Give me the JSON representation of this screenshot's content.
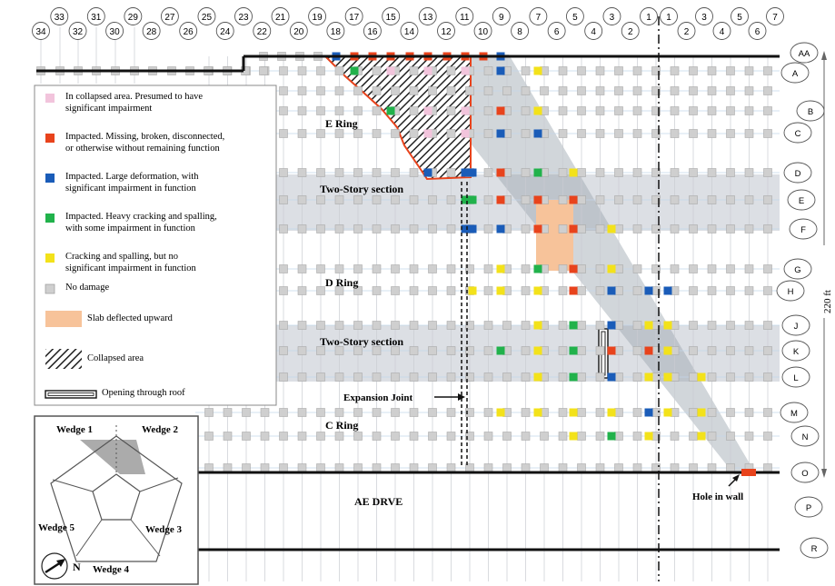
{
  "column_labels_left": [
    "34",
    "33",
    "32",
    "31",
    "30",
    "29",
    "28",
    "27",
    "26",
    "25",
    "24",
    "23",
    "22",
    "21",
    "20",
    "19",
    "18",
    "17",
    "16",
    "15",
    "14",
    "13",
    "12",
    "11",
    "10",
    "9",
    "8",
    "7",
    "6",
    "5",
    "4",
    "3",
    "2",
    "1"
  ],
  "column_labels_right": [
    "1",
    "2",
    "3",
    "4",
    "5",
    "6",
    "7"
  ],
  "row_labels": [
    "AA",
    "A",
    "B",
    "C",
    "D",
    "E",
    "F",
    "G",
    "H",
    "J",
    "K",
    "L",
    "M",
    "N",
    "O",
    "P",
    "R"
  ],
  "region_labels": {
    "e_ring": "E Ring",
    "two_story_1": "Two-Story section",
    "d_ring": "D Ring",
    "two_story_2": "Two-Story section",
    "c_ring": "C Ring",
    "drive": "AE DRVE",
    "expansion_joint": "Expansion Joint",
    "hole_in_wall": "Hole in wall",
    "dimension": "220 ft"
  },
  "legend": [
    {
      "key": "collapsed-area-column",
      "color": "#f2c4dc",
      "line1": "In collapsed area.  Presumed to have",
      "line2": "significant impairment"
    },
    {
      "key": "impacted-missing",
      "color": "#e8431c",
      "line1": "Impacted.  Missing, broken, disconnected,",
      "line2": "or otherwise without remaining function"
    },
    {
      "key": "impacted-deformation",
      "color": "#1a5cb8",
      "line1": "Impacted.  Large deformation, with",
      "line2": "significant impairment in function"
    },
    {
      "key": "impacted-cracking",
      "color": "#21b24b",
      "line1": "Impacted.  Heavy cracking and spalling,",
      "line2": "with some impairment in function"
    },
    {
      "key": "cracking-no-impairment",
      "color": "#f3e21a",
      "line1": "Cracking and spalling, but no",
      "line2": "significant impairment in function"
    },
    {
      "key": "no-damage",
      "color": "#cfcfcf",
      "line1": "No damage",
      "line2": ""
    },
    {
      "key": "slab-deflected",
      "color": "#f7c39a",
      "line1": "Slab deflected upward",
      "line2": ""
    },
    {
      "key": "collapsed-area",
      "color": "#333333",
      "line1": "Collapsed area",
      "line2": ""
    },
    {
      "key": "roof-opening",
      "color": "#ffffff",
      "line1": "Opening through roof",
      "line2": ""
    }
  ],
  "inset": {
    "wedge1": "Wedge 1",
    "wedge2": "Wedge 2",
    "wedge3": "Wedge 3",
    "wedge4": "Wedge 4",
    "wedge5": "Wedge 5",
    "north": "N"
  },
  "colors": {
    "red": "#e8431c",
    "blue": "#1a5cb8",
    "green": "#21b24b",
    "yellow": "#f3e21a",
    "pink": "#f2c4dc",
    "grey": "#cfcfcf",
    "slab": "#f7c39a",
    "band": "#dcdfe4",
    "wedge": "#9aa3ad"
  }
}
